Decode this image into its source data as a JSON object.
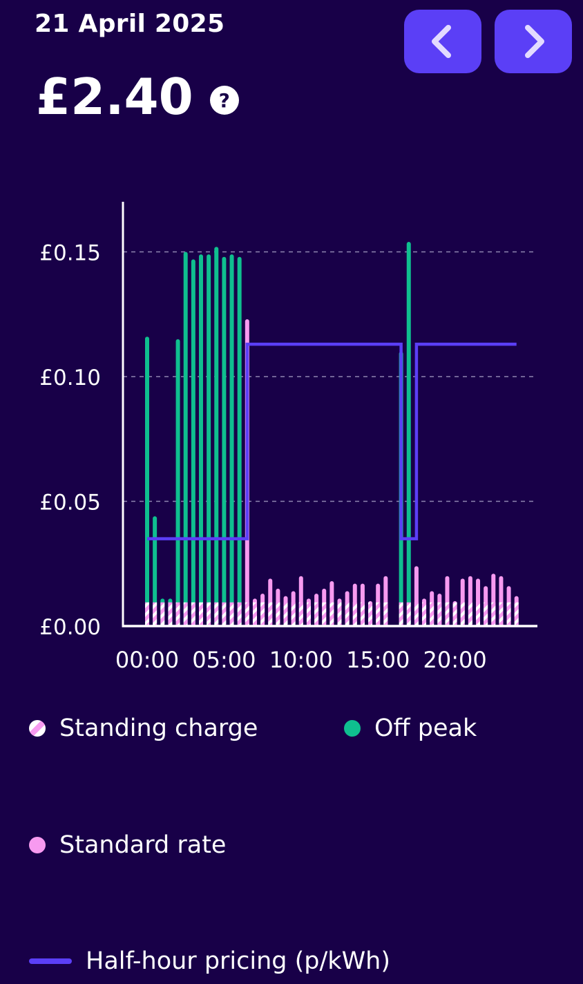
{
  "header": {
    "date": "21 April 2025",
    "total": "£2.40",
    "help_symbol": "?",
    "prev_label": "Previous day",
    "next_label": "Next day"
  },
  "colors": {
    "background": "#180048",
    "off_peak": "#0fbf8f",
    "standard_rate": "#f79af0",
    "half_hour_pricing": "#5b3ff6",
    "nav_button": "#5b3ff6",
    "grid": "#8f86b0"
  },
  "legend": [
    {
      "key": "standing",
      "label": "Standing charge",
      "icon": "striped-circle-icon"
    },
    {
      "key": "offpeak",
      "label": "Off peak",
      "icon": "green-dot-icon"
    },
    {
      "key": "standard",
      "label": "Standard rate",
      "icon": "pink-dot-icon"
    },
    {
      "key": "pricing",
      "label": "Half-hour pricing (p/kWh)",
      "icon": "line-swatch-icon"
    }
  ],
  "chart_data": {
    "type": "bar",
    "stacked": true,
    "title": "",
    "xlabel": "",
    "ylabel": "",
    "ylim": [
      0,
      0.17
    ],
    "y_ticks": [
      0,
      0.05,
      0.1,
      0.15
    ],
    "y_tick_labels": [
      "£0.00",
      "£0.05",
      "£0.10",
      "£0.15"
    ],
    "x_tick_labels": [
      {
        "slot": 0,
        "label": "00:00"
      },
      {
        "slot": 10,
        "label": "05:00"
      },
      {
        "slot": 20,
        "label": "10:00"
      },
      {
        "slot": 30,
        "label": "15:00"
      },
      {
        "slot": 40,
        "label": "20:00"
      }
    ],
    "grid": true,
    "slots": 48,
    "standing_charge_per_slot": 0.0095,
    "series": [
      {
        "name": "Off peak",
        "color": "#0fbf8f",
        "values": [
          0.116,
          0.044,
          0.011,
          0.011,
          0.115,
          0.15,
          0.147,
          0.149,
          0.149,
          0.152,
          0.148,
          0.149,
          0.148,
          0,
          0,
          0,
          0,
          0,
          0,
          0,
          0,
          0,
          0,
          0,
          0,
          0,
          0,
          0,
          0,
          0,
          0,
          0,
          0,
          0.11,
          0.154,
          0,
          0,
          0,
          0,
          0,
          0,
          0,
          0,
          0,
          0,
          0,
          0,
          0
        ]
      },
      {
        "name": "Standard rate",
        "color": "#f79af0",
        "values": [
          0,
          0,
          0,
          0,
          0,
          0,
          0,
          0,
          0,
          0,
          0,
          0,
          0,
          0.123,
          0.011,
          0.013,
          0.019,
          0.015,
          0.012,
          0.014,
          0.02,
          0.011,
          0.013,
          0.015,
          0.018,
          0.011,
          0.014,
          0.017,
          0.017,
          0.01,
          0.017,
          0.02,
          0,
          0,
          0,
          0.024,
          0.011,
          0.014,
          0.013,
          0.02,
          0.01,
          0.019,
          0.02,
          0.019,
          0.016,
          0.021,
          0.02,
          0.016
        ]
      }
    ],
    "extra_last_bar": 0.012,
    "pricing_line": {
      "name": "Half-hour pricing (p/kWh)",
      "color": "#5b3ff6",
      "steps": [
        {
          "from_slot": 0,
          "to_slot": 13,
          "value": 0.035
        },
        {
          "from_slot": 13,
          "to_slot": 33,
          "value": 0.113
        },
        {
          "from_slot": 33,
          "to_slot": 35,
          "value": 0.035
        },
        {
          "from_slot": 35,
          "to_slot": 48,
          "value": 0.113
        }
      ]
    }
  }
}
